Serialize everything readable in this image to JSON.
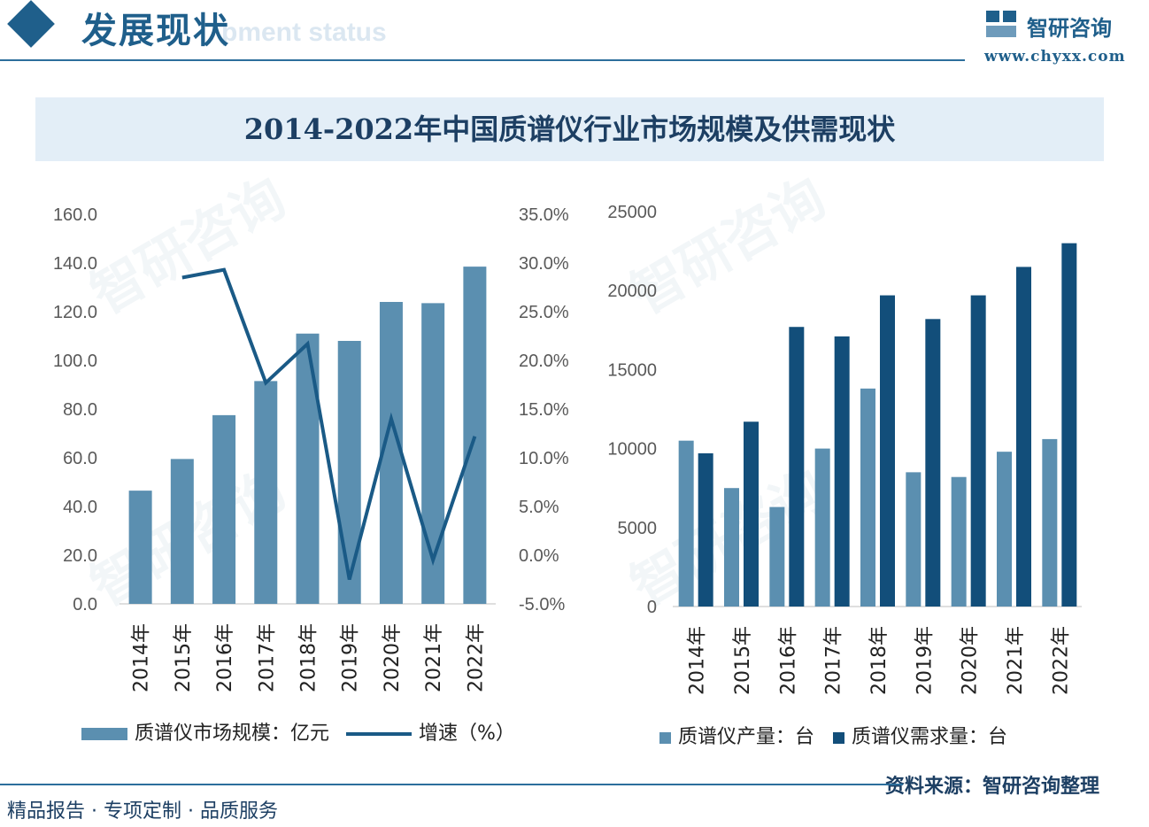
{
  "header": {
    "title": "发展现状",
    "subtitle_watermark": "pment status",
    "brand_name": "智研咨询",
    "brand_url": "www.chyxx.com"
  },
  "main_title": "2014-2022年中国质谱仪行业市场规模及供需现状",
  "chart_data": [
    {
      "type": "bar+line",
      "categories": [
        "2014年",
        "2015年",
        "2016年",
        "2017年",
        "2018年",
        "2019年",
        "2020年",
        "2021年",
        "2022年"
      ],
      "series": [
        {
          "name": "质谱仪市场规模：亿元",
          "type": "bar",
          "axis": "left",
          "values": [
            46.5,
            59.5,
            77.5,
            91.5,
            111.0,
            108.0,
            124.0,
            123.5,
            138.5
          ],
          "color": "#5b8fb0"
        },
        {
          "name": "增速（%）",
          "type": "line",
          "axis": "right",
          "values": [
            null,
            28.5,
            29.3,
            17.7,
            21.7,
            -2.5,
            14.0,
            -0.5,
            12.2
          ],
          "color": "#1a5a86"
        }
      ],
      "ylim_left": [
        0,
        160
      ],
      "yticks_left": [
        "0.0",
        "20.0",
        "40.0",
        "60.0",
        "80.0",
        "100.0",
        "120.0",
        "140.0",
        "160.0"
      ],
      "ylim_right": [
        -5,
        35
      ],
      "yticks_right": [
        "-5.0%",
        "0.0%",
        "5.0%",
        "10.0%",
        "15.0%",
        "20.0%",
        "25.0%",
        "30.0%",
        "35.0%"
      ],
      "grid": false,
      "legend": "bottom"
    },
    {
      "type": "bar",
      "categories": [
        "2014年",
        "2015年",
        "2016年",
        "2017年",
        "2018年",
        "2019年",
        "2020年",
        "2021年",
        "2022年"
      ],
      "series": [
        {
          "name": "质谱仪产量：台",
          "values": [
            10500,
            7500,
            6300,
            10000,
            13800,
            8500,
            8200,
            9800,
            10600
          ],
          "color": "#5b8fb0"
        },
        {
          "name": "质谱仪需求量：台",
          "values": [
            9700,
            11700,
            17700,
            17100,
            19700,
            18200,
            19700,
            21500,
            23000
          ],
          "color": "#124e7a"
        }
      ],
      "ylim": [
        0,
        25000
      ],
      "yticks": [
        "0",
        "5000",
        "10000",
        "15000",
        "20000",
        "25000"
      ],
      "grid": false,
      "legend": "bottom"
    }
  ],
  "footer": {
    "tagline": "精品报告 · 专项定制 · 品质服务",
    "source": "资料来源：智研咨询整理"
  }
}
